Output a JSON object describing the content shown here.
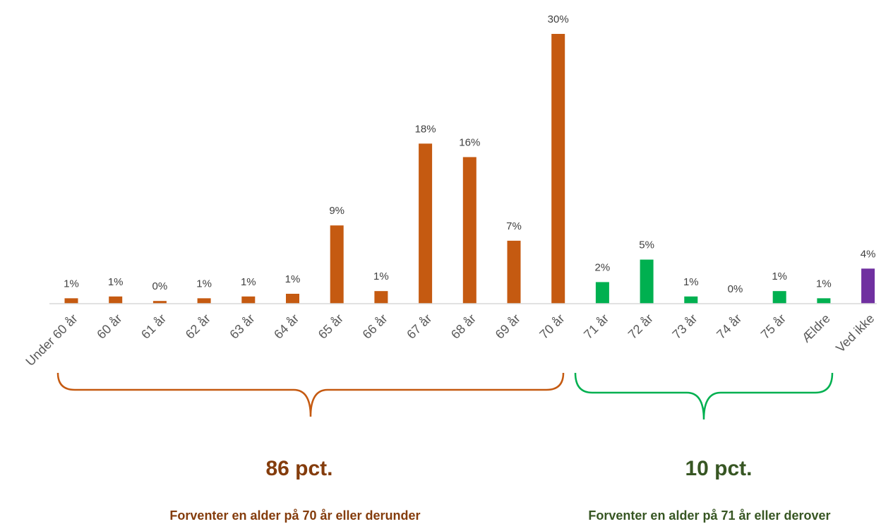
{
  "colors": {
    "under_70": "#c55a11",
    "over_70": "#00b050",
    "unknown": "#7030a0",
    "axis": "#d9d9d9",
    "left_summary_pct": "#843c0c",
    "left_summary_desc": "#843c0c",
    "right_summary_pct": "#375623",
    "right_summary_desc": "#375623"
  },
  "chart_data": {
    "type": "bar",
    "title": "",
    "xlabel": "",
    "ylabel": "",
    "ylim": [
      0,
      30
    ],
    "grid": false,
    "categories": [
      "Under 60 år",
      "60 år",
      "61 år",
      "62 år",
      "63 år",
      "64 år",
      "65 år",
      "66 år",
      "67 år",
      "68 år",
      "69 år",
      "70 år",
      "71 år",
      "72 år",
      "73 år",
      "74 år",
      "75 år",
      "Ældre",
      "Ved ikke"
    ],
    "values": [
      0.6,
      0.8,
      0.3,
      0.6,
      0.8,
      1.1,
      8.7,
      1.4,
      17.8,
      16.3,
      7.0,
      30.0,
      2.4,
      4.9,
      0.8,
      0.0,
      1.4,
      0.6,
      3.9
    ],
    "value_labels": [
      "1%",
      "1%",
      "0%",
      "1%",
      "1%",
      "1%",
      "9%",
      "1%",
      "18%",
      "16%",
      "7%",
      "30%",
      "2%",
      "5%",
      "1%",
      "0%",
      "1%",
      "1%",
      "4%"
    ],
    "groups": [
      "under_70",
      "under_70",
      "under_70",
      "under_70",
      "under_70",
      "under_70",
      "under_70",
      "under_70",
      "under_70",
      "under_70",
      "under_70",
      "under_70",
      "over_70",
      "over_70",
      "over_70",
      "over_70",
      "over_70",
      "over_70",
      "unknown"
    ]
  },
  "summary": {
    "left": {
      "pct": "86 pct.",
      "desc": "Forventer en alder på 70 år eller derunder"
    },
    "right": {
      "pct": "10 pct.",
      "desc": "Forventer en alder på 71 år eller derover"
    }
  }
}
